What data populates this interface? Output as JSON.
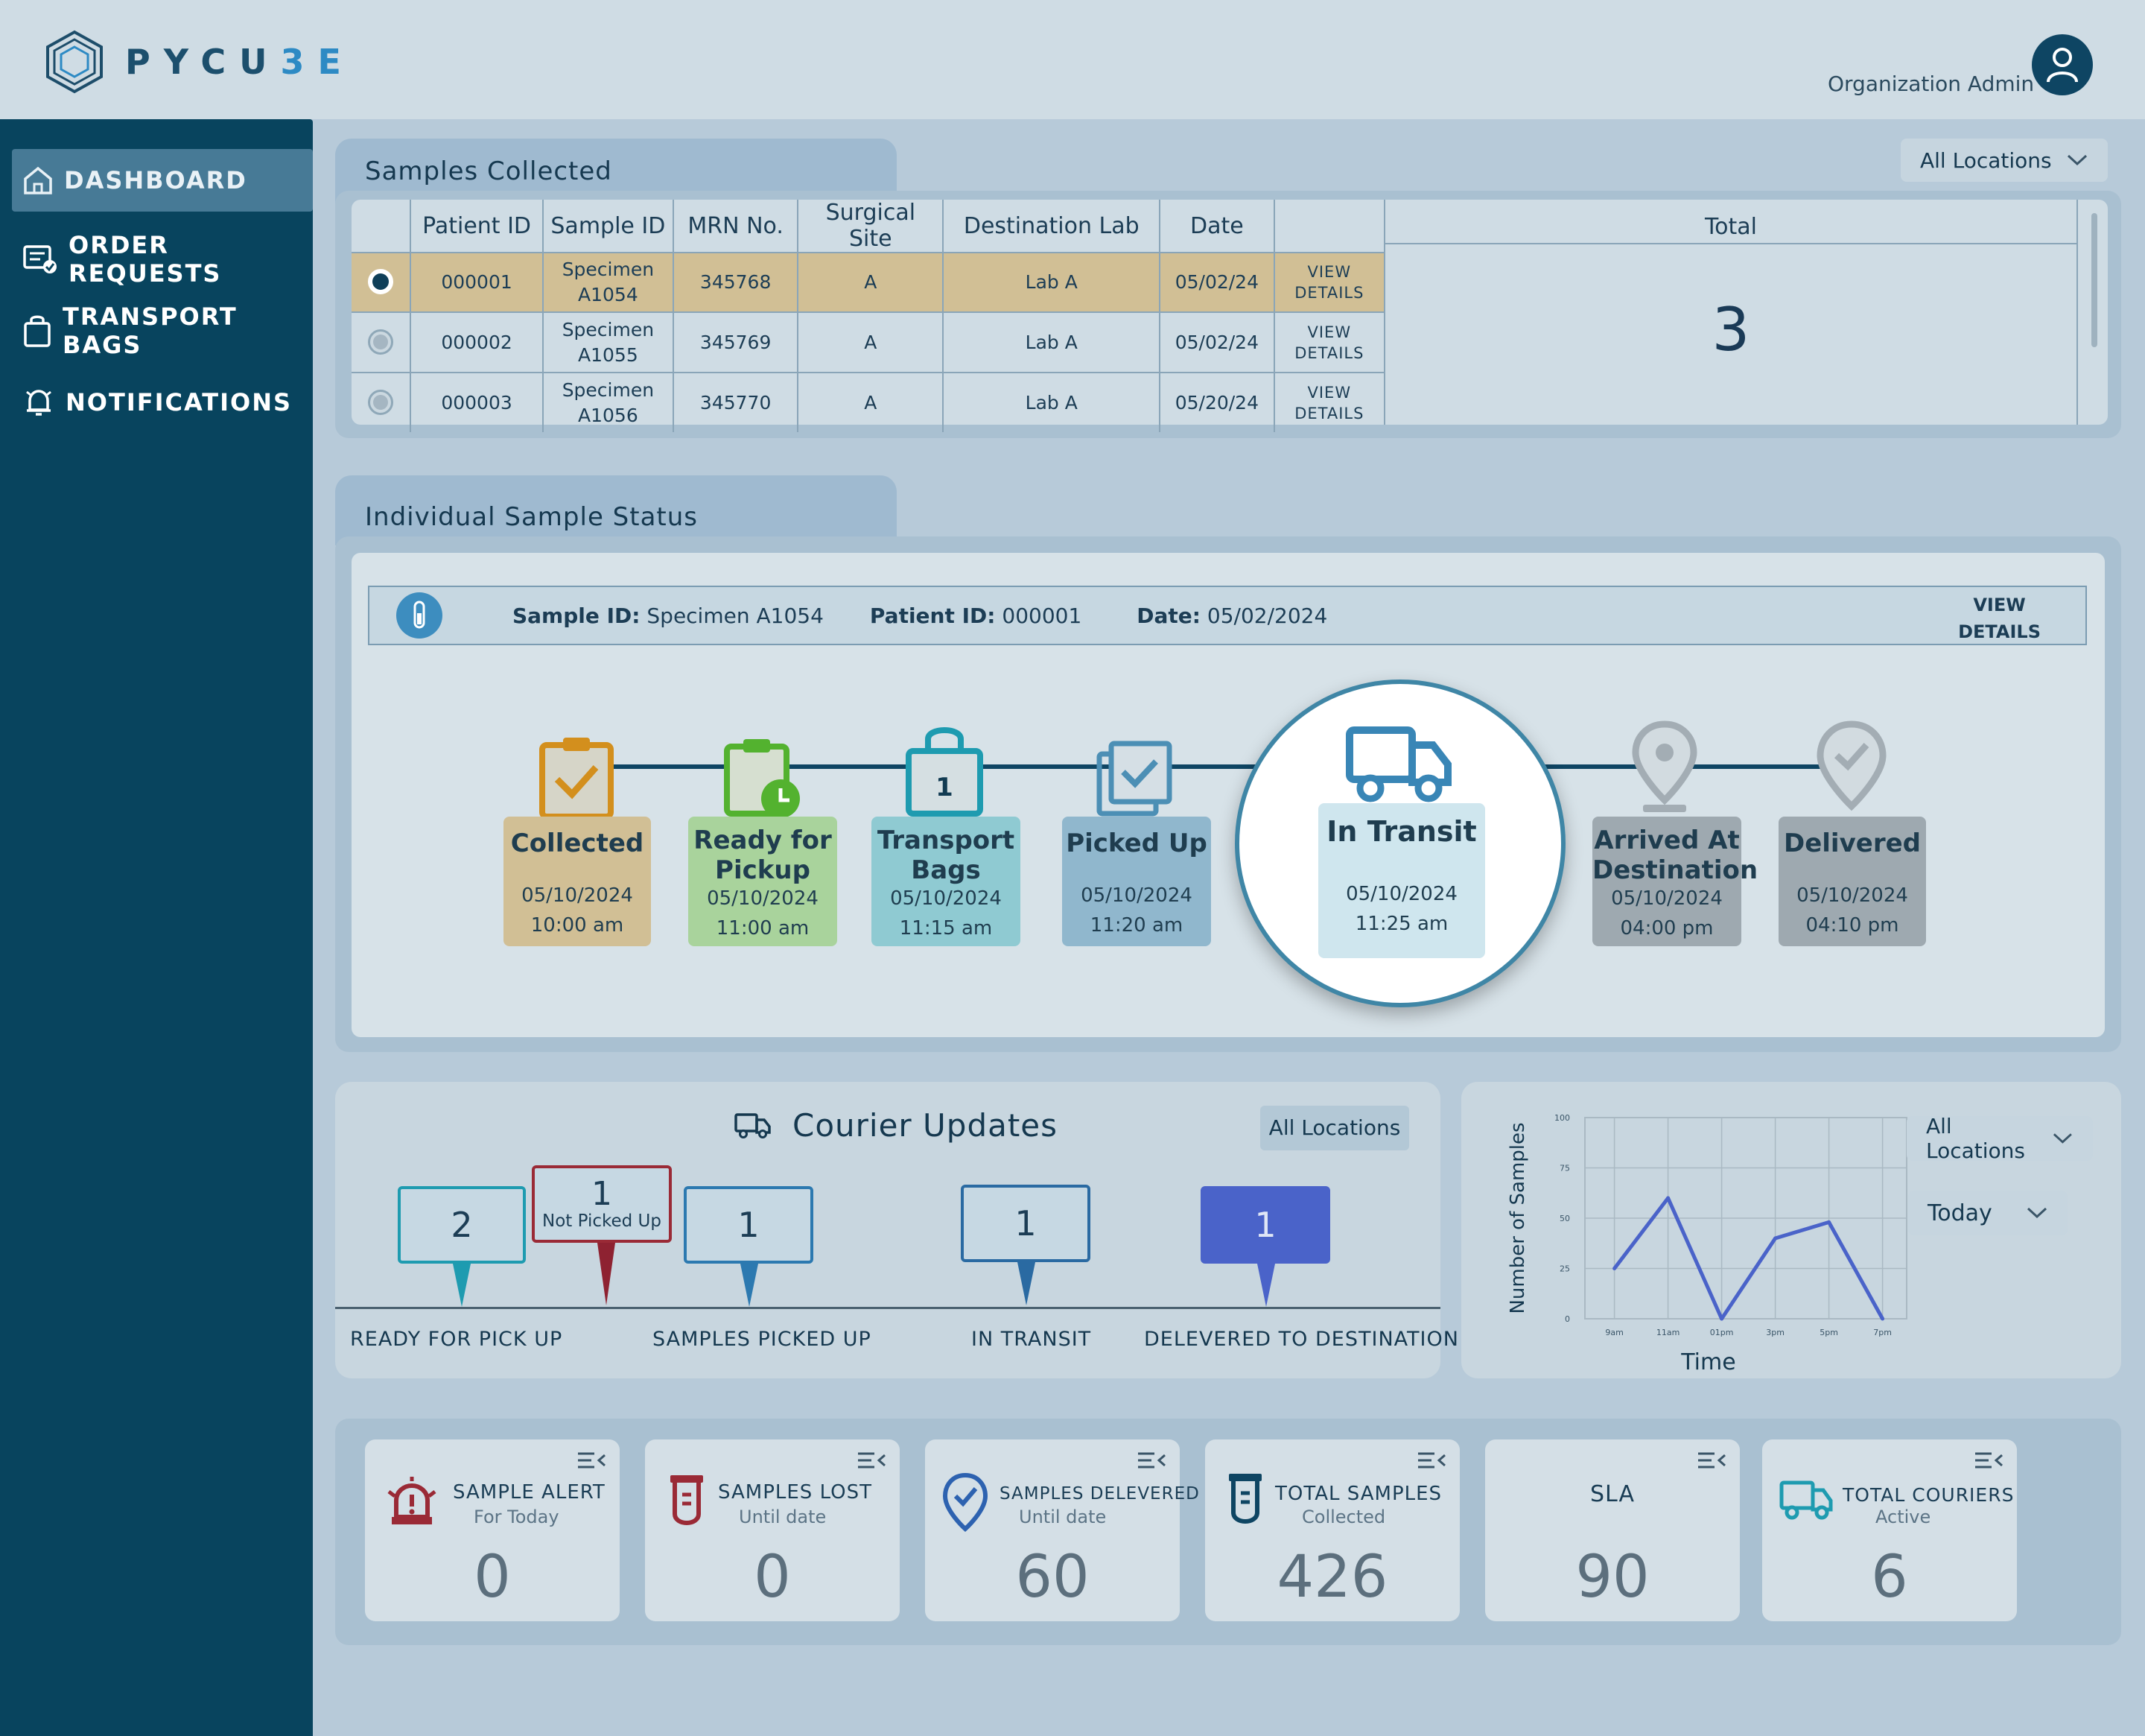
{
  "brand": {
    "name_part1": "PYCU",
    "name_part2": "3E"
  },
  "header": {
    "admin_label": "Organization Admin"
  },
  "sidebar": {
    "items": [
      {
        "label": "DASHBOARD",
        "icon": "home-icon"
      },
      {
        "label": "ORDER REQUESTS",
        "icon": "order-list-icon"
      },
      {
        "label": "TRANSPORT BAGS",
        "icon": "bag-icon"
      },
      {
        "label": "NOTIFICATIONS",
        "icon": "bell-icon"
      }
    ]
  },
  "samples_collected": {
    "title": "Samples Collected",
    "location_filter": "All Locations",
    "columns": [
      "Patient ID",
      "Sample ID",
      "MRN No.",
      "Surgical Site",
      "Destination Lab",
      "Date"
    ],
    "total_label": "Total",
    "total_value": "3",
    "rows": [
      {
        "patient_id": "000001",
        "sample_id_1": "Specimen",
        "sample_id_2": "A1054",
        "mrn": "345768",
        "site": "A",
        "lab": "Lab A",
        "date": "05/02/24",
        "action_1": "VIEW",
        "action_2": "DETAILS"
      },
      {
        "patient_id": "000002",
        "sample_id_1": "Specimen",
        "sample_id_2": "A1055",
        "mrn": "345769",
        "site": "A",
        "lab": "Lab A",
        "date": "05/02/24",
        "action_1": "VIEW",
        "action_2": "DETAILS"
      },
      {
        "patient_id": "000003",
        "sample_id_1": "Specimen",
        "sample_id_2": "A1056",
        "mrn": "345770",
        "site": "A",
        "lab": "Lab A",
        "date": "05/20/24",
        "action_1": "VIEW",
        "action_2": "DETAILS"
      }
    ]
  },
  "sample_status": {
    "title": "Individual Sample Status",
    "sample_id_label": "Sample ID:",
    "sample_id_value": "Specimen A1054",
    "patient_id_label": "Patient ID:",
    "patient_id_value": "000001",
    "date_label": "Date:",
    "date_value": "05/02/2024",
    "view_1": "VIEW",
    "view_2": "DETAILS",
    "steps": [
      {
        "title_1": "Collected",
        "title_2": "",
        "date": "05/10/2024",
        "time": "10:00 am",
        "color": "#d6a93f"
      },
      {
        "title_1": "Ready for",
        "title_2": "Pickup",
        "date": "05/10/2024",
        "time": "11:00 am",
        "color": "#86c45a"
      },
      {
        "title_1": "Transport",
        "title_2": "Bags",
        "date": "05/10/2024",
        "time": "11:15 am",
        "color": "#4eb5c4",
        "badge": "1"
      },
      {
        "title_1": "Picked Up",
        "title_2": "",
        "date": "05/10/2024",
        "time": "11:20 am",
        "color": "#5d9fc0"
      },
      {
        "title_1": "In Transit",
        "title_2": "",
        "date": "05/10/2024",
        "time": "11:25 am",
        "color": "#3986b6"
      },
      {
        "title_1": "Arrived At",
        "title_2": "Destination",
        "date": "05/10/2024",
        "time": "04:00 pm",
        "color": "#9aa7b0"
      },
      {
        "title_1": "Delivered",
        "title_2": "",
        "date": "05/10/2024",
        "time": "04:10 pm",
        "color": "#9aa7b0"
      }
    ]
  },
  "courier": {
    "title": "Courier Updates",
    "location_button": "All Locations",
    "markers": [
      {
        "value": "2",
        "sub": ""
      },
      {
        "value": "1",
        "sub": "Not Picked Up"
      },
      {
        "value": "1",
        "sub": ""
      },
      {
        "value": "1",
        "sub": ""
      },
      {
        "value": "1",
        "sub": ""
      }
    ],
    "labels": [
      "READY FOR PICK UP",
      "SAMPLES PICKED UP",
      "IN TRANSIT",
      "DELEVERED TO DESTINATION"
    ]
  },
  "filters": {
    "location": "All Locations",
    "period": "Today"
  },
  "chart_data": {
    "type": "line",
    "xlabel": "Time",
    "ylabel": "Number of Samples",
    "x": [
      "9am",
      "11am",
      "01pm",
      "3pm",
      "5pm",
      "7pm"
    ],
    "y_ticks": [
      "0",
      "25",
      "50",
      "75",
      "100"
    ],
    "ylim": [
      0,
      100
    ],
    "series": [
      {
        "points": [
          [
            0,
            25
          ],
          [
            1,
            60
          ],
          [
            2,
            0
          ],
          [
            3,
            40
          ],
          [
            4,
            48
          ],
          [
            5,
            0
          ]
        ]
      }
    ],
    "grid": true,
    "color": "#4a63c9"
  },
  "stats": [
    {
      "title": "SAMPLE ALERT",
      "sub": "For Today",
      "value": "0",
      "icon": "alarm-icon"
    },
    {
      "title": "SAMPLES LOST",
      "sub": "Until date",
      "value": "0",
      "icon": "test-tube-icon"
    },
    {
      "title": "SAMPLES DELEVERED",
      "sub": "Until date",
      "value": "60",
      "icon": "location-check-icon"
    },
    {
      "title": "TOTAL SAMPLES",
      "sub": "Collected",
      "value": "426",
      "icon": "test-tube-icon"
    },
    {
      "title": "SLA",
      "sub": "",
      "value": "90",
      "icon": ""
    },
    {
      "title": "TOTAL COURIERS",
      "sub": "Active",
      "value": "6",
      "icon": "truck-icon"
    }
  ]
}
